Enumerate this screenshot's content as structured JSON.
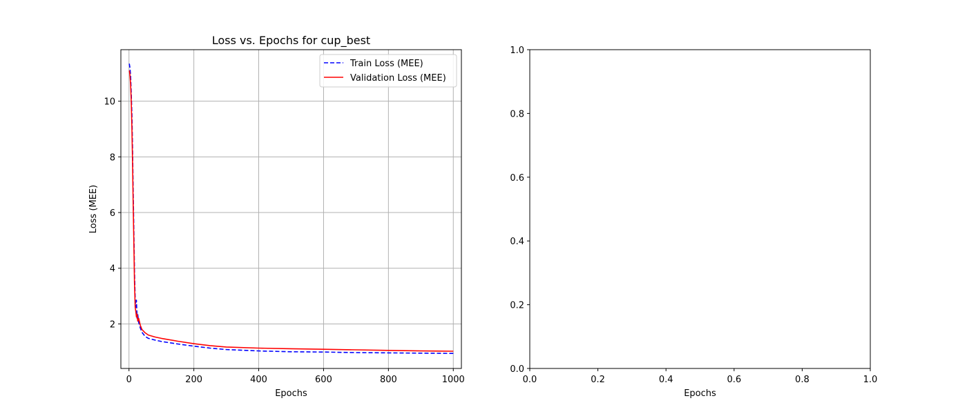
{
  "chart_data": [
    {
      "type": "line",
      "title": "Loss vs. Epochs for cup_best",
      "xlabel": "Epochs",
      "ylabel": "Loss (MEE)",
      "xlim": [
        -25,
        1025
      ],
      "ylim": [
        0.4,
        11.85
      ],
      "xticks": [
        0,
        200,
        400,
        600,
        800,
        1000
      ],
      "yticks": [
        2,
        4,
        6,
        8,
        10
      ],
      "grid": true,
      "legend_position": "upper right",
      "series": [
        {
          "name": "Train Loss (MEE)",
          "color": "#0000ff",
          "style": "dashed",
          "x": [
            1,
            3,
            5,
            7,
            9,
            11,
            13,
            15,
            17,
            19,
            21,
            23,
            25,
            27,
            30,
            35,
            40,
            50,
            60,
            80,
            100,
            150,
            200,
            250,
            300,
            400,
            500,
            600,
            700,
            800,
            900,
            1000
          ],
          "y": [
            11.35,
            11.2,
            10.9,
            10.3,
            9.5,
            8.3,
            6.8,
            5.3,
            3.9,
            2.9,
            2.6,
            2.85,
            2.2,
            2.35,
            2.05,
            1.85,
            1.7,
            1.55,
            1.48,
            1.42,
            1.37,
            1.28,
            1.2,
            1.13,
            1.08,
            1.03,
            1.0,
            0.99,
            0.97,
            0.96,
            0.95,
            0.94
          ]
        },
        {
          "name": "Validation Loss (MEE)",
          "color": "#ff0000",
          "style": "solid",
          "x": [
            1,
            3,
            5,
            7,
            9,
            11,
            13,
            15,
            17,
            19,
            21,
            23,
            25,
            27,
            30,
            35,
            40,
            50,
            60,
            80,
            100,
            150,
            200,
            250,
            300,
            400,
            500,
            600,
            700,
            800,
            900,
            1000
          ],
          "y": [
            11.1,
            10.95,
            10.6,
            10.0,
            9.0,
            7.8,
            6.3,
            4.9,
            3.5,
            2.6,
            2.45,
            2.25,
            2.35,
            2.1,
            2.2,
            1.95,
            1.8,
            1.68,
            1.6,
            1.53,
            1.48,
            1.38,
            1.29,
            1.22,
            1.17,
            1.13,
            1.11,
            1.09,
            1.07,
            1.05,
            1.03,
            1.02
          ]
        }
      ]
    },
    {
      "type": "line",
      "title": "",
      "xlabel": "Epochs",
      "ylabel": "",
      "xlim": [
        0,
        1
      ],
      "ylim": [
        0,
        1
      ],
      "xticks": [
        0,
        0.2,
        0.4,
        0.6,
        0.8,
        1
      ],
      "yticks": [
        0,
        0.2,
        0.4,
        0.6,
        0.8,
        1
      ],
      "xticklabels": [
        "0.0",
        "0.2",
        "0.4",
        "0.6",
        "0.8",
        "1.0"
      ],
      "yticklabels": [
        "0.0",
        "0.2",
        "0.4",
        "0.6",
        "0.8",
        "1.0"
      ],
      "grid": false,
      "series": []
    }
  ]
}
